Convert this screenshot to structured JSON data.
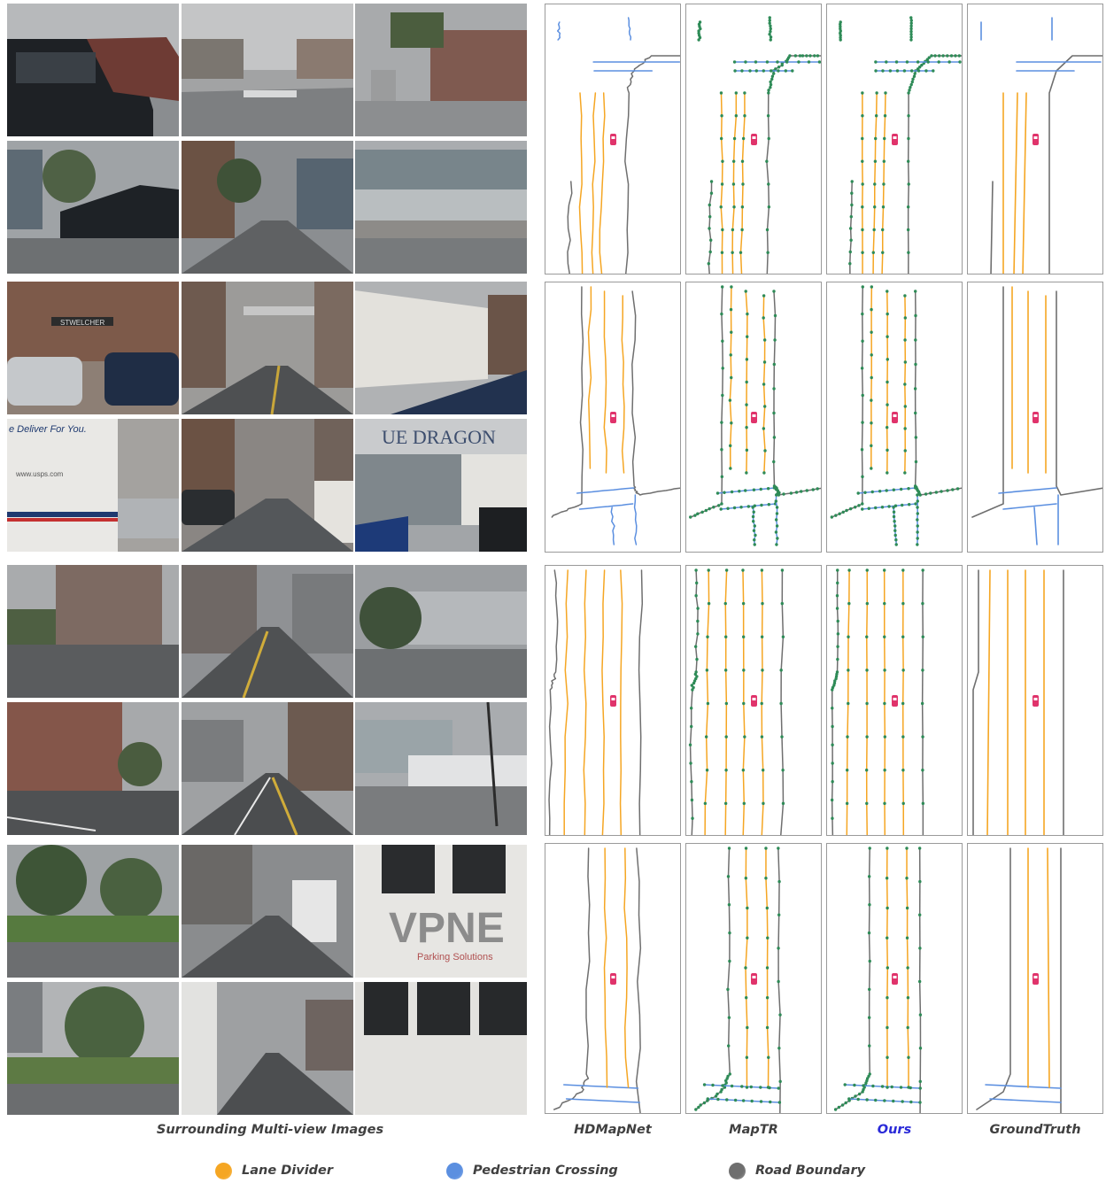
{
  "captions": {
    "images": "Surrounding Multi-view Images",
    "hdmapnet": "HDMapNet",
    "maptr": "MapTR",
    "ours": "Ours",
    "groundtruth": "GroundTruth"
  },
  "legend": [
    {
      "label": "Lane Divider",
      "color": "#f5a623"
    },
    {
      "label": "Pedestrian Crossing",
      "color": "#5b8fe0"
    },
    {
      "label": "Road Boundary",
      "color": "#6f6f6f"
    }
  ],
  "colors": {
    "lane_divider": "#f5a623",
    "ped_crossing": "#5b8fe0",
    "road_boundary": "#6f6f6f",
    "vertex": "#2e8b57",
    "ego_car": "#e0336b",
    "ours_caption": "#2a2ad8"
  },
  "photo_text": {
    "store_sign": "STWELCHER",
    "truck_text": "e Deliver For You.",
    "truck_url": "www.usps.com",
    "shop_sign": "UE DRAGON",
    "bus_brand": "VPNE",
    "bus_tagline": "Parking Solutions"
  },
  "scenes": [
    {
      "photos": [
        "#8a8d90",
        "#9a9b9c",
        "#a3a5a7",
        "#8e9296",
        "#7e8184",
        "#8b8f93"
      ]
    },
    {
      "photos": [
        "#8d7f75",
        "#8a8580",
        "#a5a3a0",
        "#a4a29f",
        "#85807b",
        "#9b9ea2"
      ]
    },
    {
      "photos": [
        "#8e9196",
        "#85888c",
        "#8f9395",
        "#8a7f78",
        "#8a8b8d",
        "#a4a6a8"
      ]
    },
    {
      "photos": [
        "#7f8a7c",
        "#86888a",
        "#b8babd",
        "#868c80",
        "#8e9092",
        "#a9abad"
      ]
    }
  ]
}
